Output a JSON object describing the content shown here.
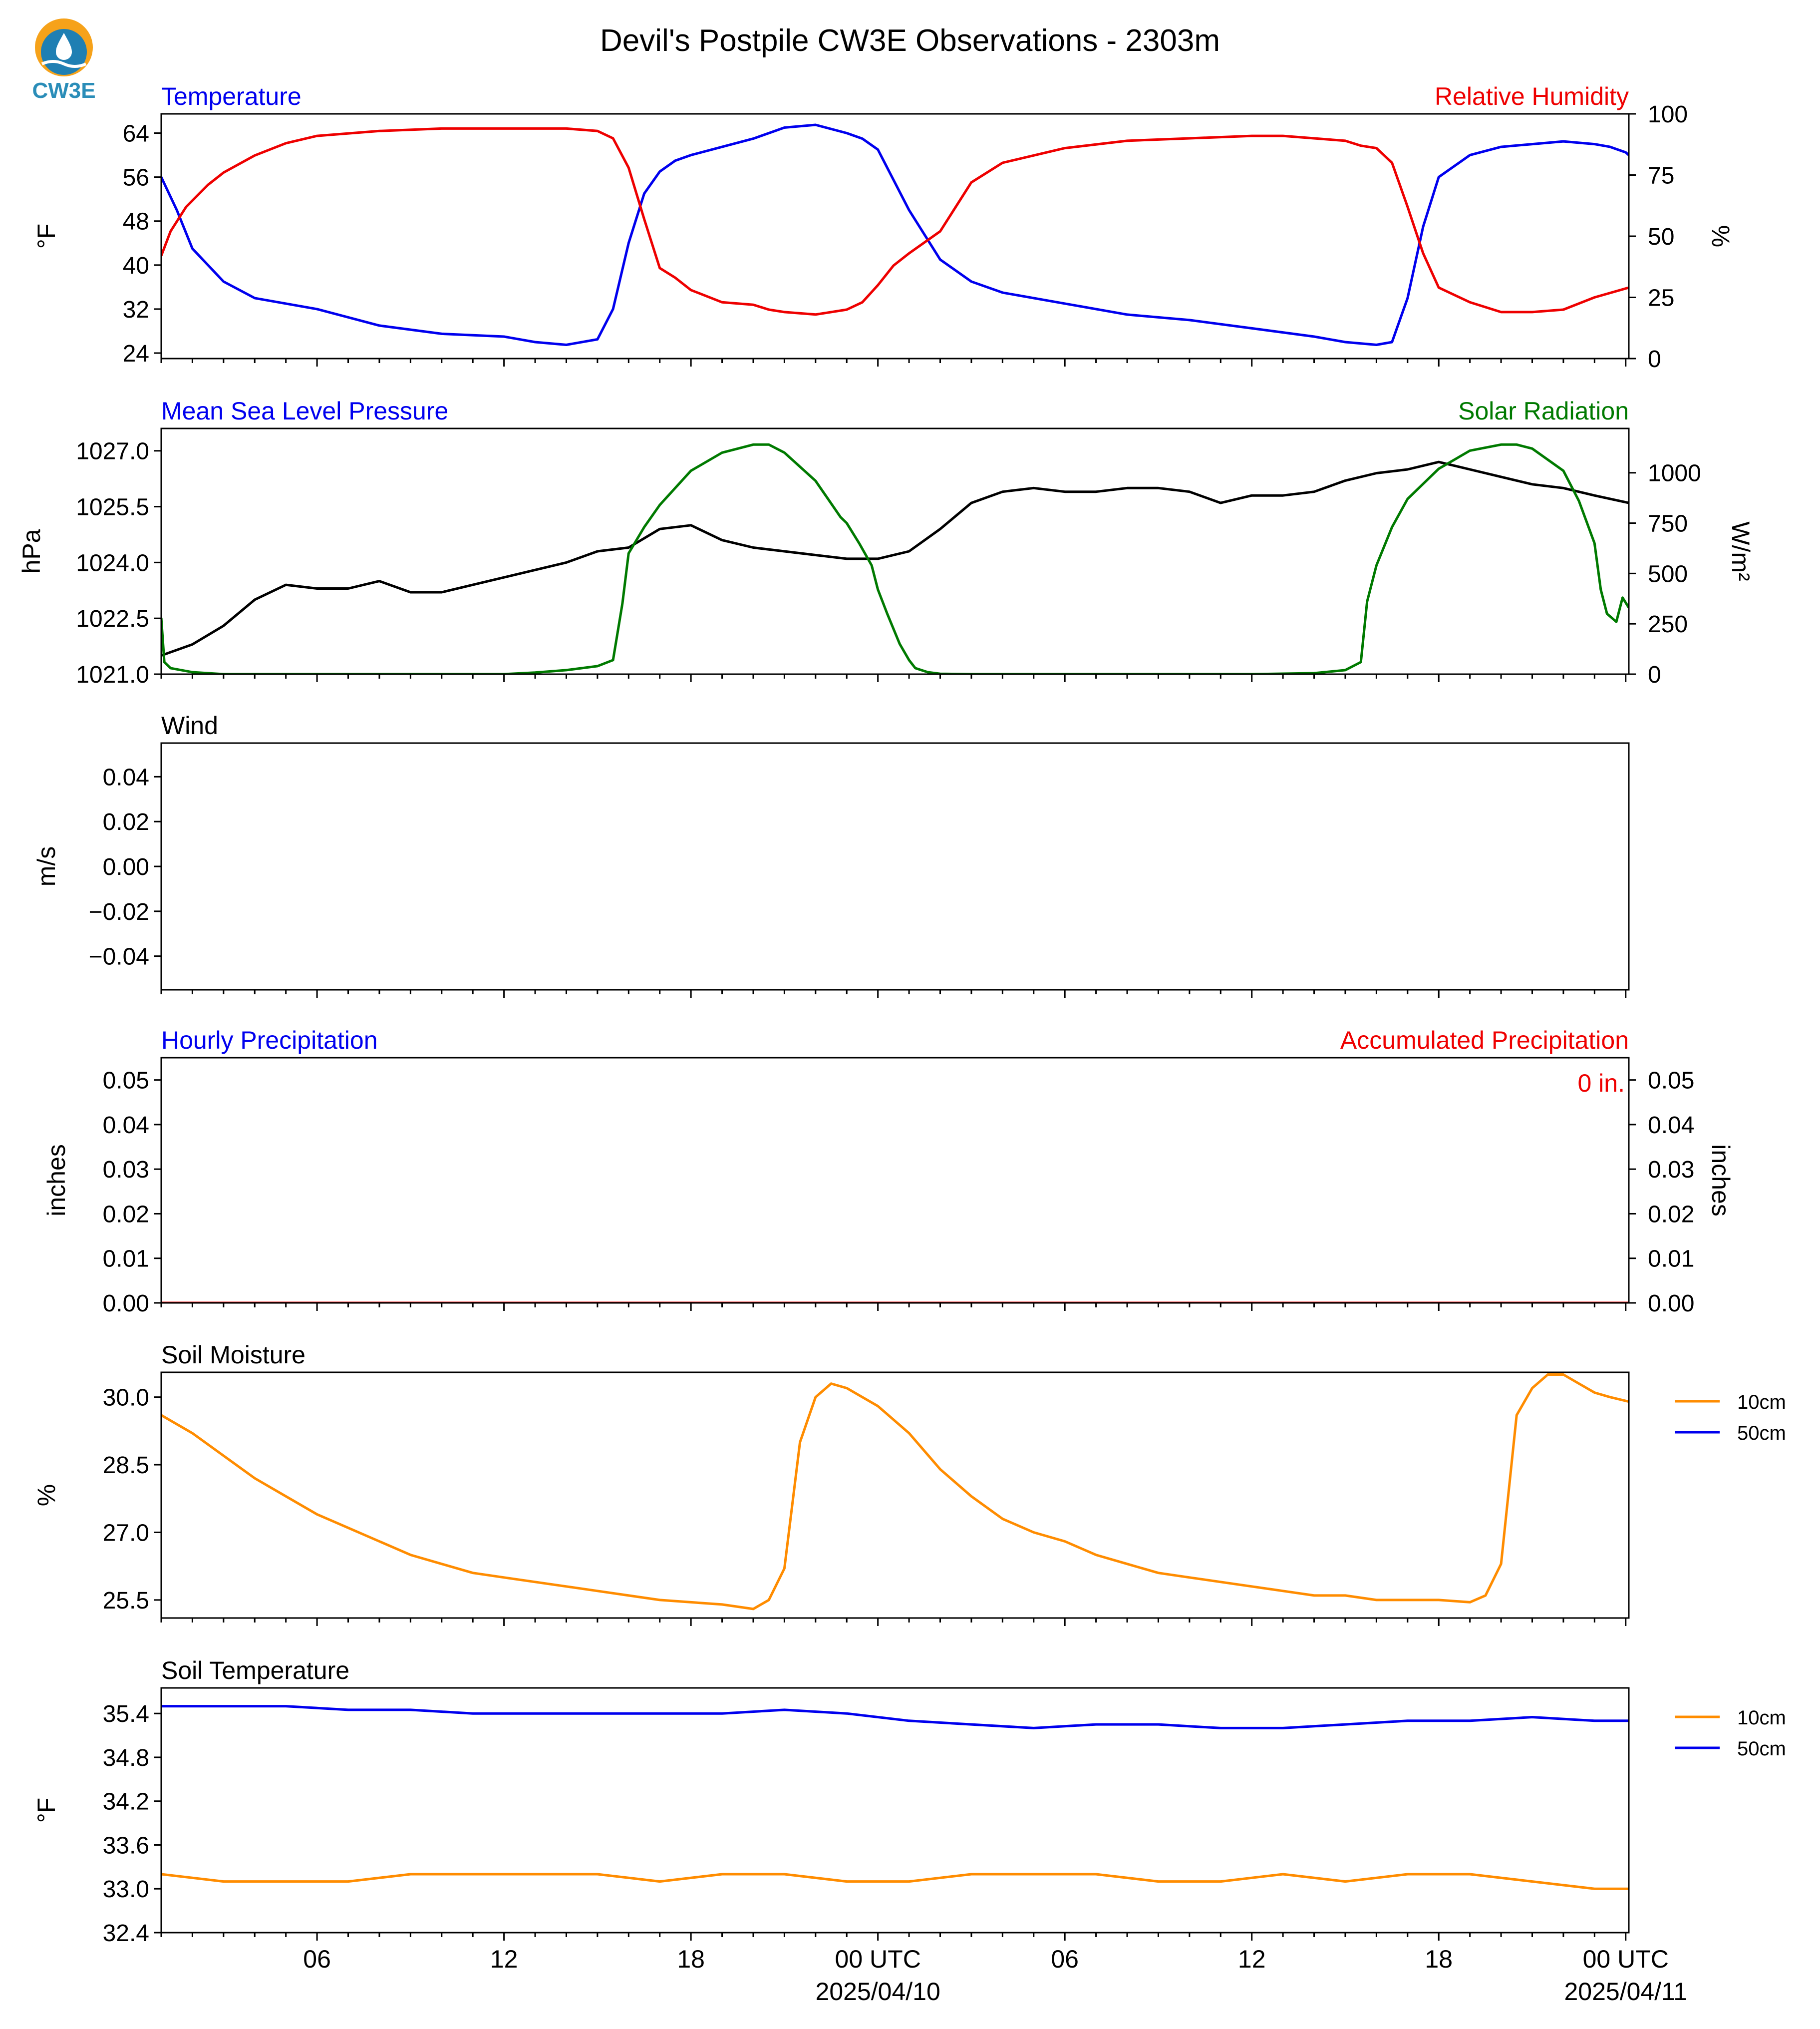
{
  "title": "Devil's Postpile CW3E Observations - 2303m",
  "logo_text": "CW3E",
  "colors": {
    "blue": "#0000ee",
    "red": "#ee0000",
    "green": "#007a00",
    "black": "#000000",
    "orange": "#ff8c00"
  },
  "x_axis": {
    "ticks": [
      "06",
      "12",
      "18",
      "00 UTC",
      "06",
      "12",
      "18",
      "00 UTC"
    ],
    "tick_hours": [
      6,
      12,
      18,
      24,
      30,
      36,
      42,
      48
    ],
    "dates": [
      "2025/04/10",
      "2025/04/11"
    ],
    "range_hours": [
      1,
      48.1
    ]
  },
  "chart_data": [
    {
      "type": "line",
      "title_left": "Temperature",
      "title_right": "Relative Humidity",
      "ylabel": "°F",
      "ylabel2": "%",
      "yticks": [
        "64",
        "56",
        "48",
        "40",
        "32",
        "24"
      ],
      "yticks2": [
        "100",
        "75",
        "50",
        "25",
        "0"
      ],
      "ylim": [
        23,
        67.5
      ],
      "ylim2": [
        0,
        100
      ],
      "series": [
        {
          "name": "Temperature",
          "axis": "left",
          "color": "#0000ee",
          "x": [
            1,
            1.5,
            2,
            3,
            4,
            5,
            6,
            8,
            10,
            12,
            13,
            14,
            15,
            15.5,
            16,
            16.5,
            17,
            17.5,
            18,
            19,
            20,
            21,
            22,
            23,
            23.5,
            24,
            25,
            26,
            27,
            28,
            30,
            32,
            34,
            36,
            38,
            39,
            40,
            40.5,
            41,
            41.5,
            42,
            43,
            44,
            45,
            46,
            47,
            47.5,
            48,
            48.1
          ],
          "y": [
            56,
            50,
            43,
            37,
            34,
            33,
            32,
            29,
            27.5,
            27,
            26,
            25.5,
            26.5,
            32,
            44,
            53,
            57,
            59,
            60,
            61.5,
            63,
            65,
            65.5,
            64,
            63,
            61,
            50,
            41,
            37,
            35,
            33,
            31,
            30,
            28.5,
            27,
            26,
            25.5,
            26,
            34,
            47,
            56,
            60,
            61.5,
            62,
            62.5,
            62,
            61.5,
            60.5,
            60
          ]
        },
        {
          "name": "Relative Humidity",
          "axis": "right",
          "color": "#ee0000",
          "x": [
            1,
            1.3,
            1.8,
            2.5,
            3,
            4,
            5,
            6,
            8,
            10,
            12,
            14,
            15,
            15.5,
            16,
            16.5,
            17,
            17.5,
            18,
            19,
            20,
            20.5,
            21,
            22,
            23,
            23.5,
            24,
            24.5,
            25,
            26,
            27,
            28,
            30,
            32,
            34,
            36,
            37,
            38,
            39,
            39.5,
            40,
            40.5,
            41,
            41.5,
            42,
            43,
            44,
            45,
            46,
            47,
            48.1
          ],
          "y": [
            42,
            52,
            62,
            71,
            76,
            83,
            88,
            91,
            93,
            94,
            94,
            94,
            93,
            90,
            78,
            57,
            37,
            33,
            28,
            23,
            22,
            20,
            19,
            18,
            20,
            23,
            30,
            38,
            43,
            52,
            72,
            80,
            86,
            89,
            90,
            91,
            91,
            90,
            89,
            87,
            86,
            80,
            62,
            43,
            29,
            23,
            19,
            19,
            20,
            25,
            29
          ]
        }
      ]
    },
    {
      "type": "line",
      "title_left": "Mean Sea Level Pressure",
      "title_right": "Solar Radiation",
      "ylabel": "hPa",
      "ylabel2": "W/m²",
      "yticks": [
        "1027.0",
        "1025.5",
        "1024.0",
        "1022.5",
        "1021.0"
      ],
      "yticks2": [
        "1000",
        "750",
        "500",
        "250",
        "0"
      ],
      "ylim": [
        1021.0,
        1027.6
      ],
      "ylim2": [
        0,
        1220
      ],
      "series": [
        {
          "name": "Mean Sea Level Pressure",
          "axis": "left",
          "color": "#000000",
          "x": [
            1,
            2,
            3,
            4,
            5,
            6,
            7,
            8,
            9,
            10,
            11,
            12,
            13,
            14,
            15,
            16,
            17,
            18,
            19,
            20,
            21,
            22,
            23,
            24,
            25,
            26,
            27,
            28,
            29,
            30,
            31,
            32,
            33,
            34,
            35,
            36,
            37,
            38,
            39,
            40,
            41,
            42,
            43,
            44,
            45,
            46,
            47,
            48.1
          ],
          "y": [
            1021.5,
            1021.8,
            1022.3,
            1023.0,
            1023.4,
            1023.3,
            1023.3,
            1023.5,
            1023.2,
            1023.2,
            1023.4,
            1023.6,
            1023.8,
            1024.0,
            1024.3,
            1024.4,
            1024.9,
            1025.0,
            1024.6,
            1024.4,
            1024.3,
            1024.2,
            1024.1,
            1024.1,
            1024.3,
            1024.9,
            1025.6,
            1025.9,
            1026.0,
            1025.9,
            1025.9,
            1026.0,
            1026.0,
            1025.9,
            1025.6,
            1025.8,
            1025.8,
            1025.9,
            1026.2,
            1026.4,
            1026.5,
            1026.7,
            1026.5,
            1026.3,
            1026.1,
            1026.0,
            1025.8,
            1025.6
          ]
        },
        {
          "name": "Solar Radiation",
          "axis": "right",
          "color": "#007a00",
          "x": [
            1,
            1.1,
            1.3,
            2,
            3,
            6,
            12,
            13,
            14,
            15,
            15.5,
            15.8,
            16,
            16.5,
            17,
            18,
            19,
            20,
            20.5,
            21,
            22,
            22.8,
            23,
            23.4,
            23.8,
            24,
            24.3,
            24.7,
            25,
            25.2,
            25.6,
            26,
            27,
            30,
            36,
            38,
            39,
            39.5,
            39.7,
            40,
            40.5,
            41,
            42,
            43,
            44,
            44.5,
            45,
            46,
            46.5,
            47,
            47.2,
            47.4,
            47.7,
            47.9,
            48.1
          ],
          "y": [
            280,
            60,
            30,
            10,
            0,
            0,
            0,
            8,
            20,
            40,
            70,
            350,
            600,
            730,
            840,
            1010,
            1100,
            1140,
            1140,
            1100,
            960,
            780,
            750,
            650,
            540,
            420,
            300,
            150,
            70,
            30,
            10,
            2,
            0,
            0,
            0,
            5,
            20,
            60,
            360,
            540,
            730,
            870,
            1020,
            1110,
            1140,
            1140,
            1120,
            1010,
            860,
            650,
            420,
            300,
            260,
            380,
            330
          ]
        }
      ]
    },
    {
      "type": "line",
      "title_left": "Wind",
      "ylabel": "m/s",
      "yticks": [
        "0.04",
        "0.02",
        "0.00",
        "−0.02",
        "−0.04"
      ],
      "ylim": [
        -0.055,
        0.055
      ],
      "series": []
    },
    {
      "type": "line",
      "title_left": "Hourly Precipitation",
      "title_right": "Accumulated Precipitation",
      "annotation": "0 in.",
      "ylabel": "inches",
      "ylabel2": "inches",
      "yticks": [
        "0.05",
        "0.04",
        "0.03",
        "0.02",
        "0.01",
        "0.00"
      ],
      "yticks2": [
        "0.05",
        "0.04",
        "0.03",
        "0.02",
        "0.01",
        "0.00"
      ],
      "ylim": [
        0,
        0.055
      ],
      "series": [
        {
          "name": "Accumulated Precipitation",
          "axis": "left",
          "color": "#ee0000",
          "x": [
            1,
            48.1
          ],
          "y": [
            0,
            0
          ]
        }
      ]
    },
    {
      "type": "line",
      "title_left": "Soil Moisture",
      "ylabel": "%",
      "yticks": [
        "30.0",
        "28.5",
        "27.0",
        "25.5"
      ],
      "ylim": [
        25.1,
        30.55
      ],
      "legend": [
        "10cm",
        "50cm"
      ],
      "series": [
        {
          "name": "10cm",
          "axis": "left",
          "color": "#ff8c00",
          "x": [
            1,
            2,
            3,
            4,
            5,
            6,
            7,
            8,
            9,
            10,
            11,
            12,
            13,
            14,
            15,
            16,
            17,
            18,
            19,
            20,
            20.5,
            21,
            21.5,
            22,
            22.5,
            23,
            24,
            25,
            26,
            27,
            28,
            29,
            30,
            31,
            32,
            33,
            34,
            35,
            36,
            37,
            38,
            39,
            40,
            41,
            42,
            43,
            43.5,
            44,
            44.5,
            45,
            45.5,
            46,
            46.5,
            47,
            47.5,
            48.1
          ],
          "y": [
            29.6,
            29.2,
            28.7,
            28.2,
            27.8,
            27.4,
            27.1,
            26.8,
            26.5,
            26.3,
            26.1,
            26.0,
            25.9,
            25.8,
            25.7,
            25.6,
            25.5,
            25.45,
            25.4,
            25.3,
            25.5,
            26.2,
            29.0,
            30.0,
            30.3,
            30.2,
            29.8,
            29.2,
            28.4,
            27.8,
            27.3,
            27.0,
            26.8,
            26.5,
            26.3,
            26.1,
            26.0,
            25.9,
            25.8,
            25.7,
            25.6,
            25.6,
            25.5,
            25.5,
            25.5,
            25.45,
            25.6,
            26.3,
            29.6,
            30.2,
            30.5,
            30.5,
            30.3,
            30.1,
            30.0,
            29.9
          ]
        }
      ]
    },
    {
      "type": "line",
      "title_left": "Soil Temperature",
      "ylabel": "°F",
      "yticks": [
        "35.4",
        "34.8",
        "34.2",
        "33.6",
        "33.0",
        "32.4"
      ],
      "ylim": [
        32.4,
        35.75
      ],
      "legend": [
        "10cm",
        "50cm"
      ],
      "series": [
        {
          "name": "50cm",
          "axis": "left",
          "color": "#0000ee",
          "x": [
            1,
            3,
            5,
            7,
            9,
            11,
            13,
            15,
            17,
            19,
            21,
            23,
            25,
            27,
            29,
            31,
            33,
            35,
            37,
            39,
            41,
            43,
            45,
            47,
            48.1
          ],
          "y": [
            35.5,
            35.5,
            35.5,
            35.45,
            35.45,
            35.4,
            35.4,
            35.4,
            35.4,
            35.4,
            35.45,
            35.4,
            35.3,
            35.25,
            35.2,
            35.25,
            35.25,
            35.2,
            35.2,
            35.25,
            35.3,
            35.3,
            35.35,
            35.3,
            35.3
          ]
        },
        {
          "name": "10cm",
          "axis": "left",
          "color": "#ff8c00",
          "x": [
            1,
            3,
            5,
            7,
            9,
            11,
            13,
            15,
            17,
            19,
            21,
            23,
            25,
            27,
            29,
            31,
            33,
            35,
            37,
            39,
            41,
            43,
            45,
            47,
            48.1
          ],
          "y": [
            33.2,
            33.1,
            33.1,
            33.1,
            33.2,
            33.2,
            33.2,
            33.2,
            33.1,
            33.2,
            33.2,
            33.1,
            33.1,
            33.2,
            33.2,
            33.2,
            33.1,
            33.1,
            33.2,
            33.1,
            33.2,
            33.2,
            33.1,
            33.0,
            33.0
          ]
        }
      ]
    }
  ]
}
